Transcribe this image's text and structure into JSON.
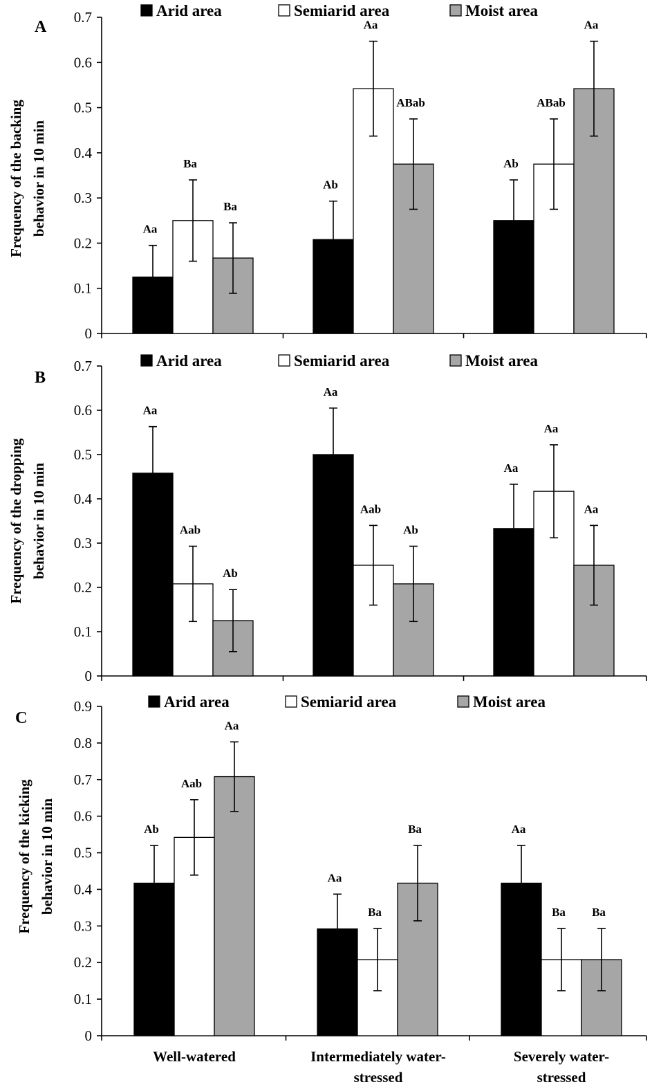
{
  "colors": {
    "arid": "#000000",
    "semiarid": "#ffffff",
    "moist": "#a6a6a6",
    "axis": "#000000"
  },
  "chart_data": [
    {
      "type": "bar",
      "panel": "A",
      "ylabel_line1": "Frequency of the backing",
      "ylabel_line2": "behavior in 10 min",
      "ylim": [
        0,
        0.7
      ],
      "yticks": [
        "0",
        "0.1",
        "0.2",
        "0.3",
        "0.4",
        "0.5",
        "0.6",
        "0.7"
      ],
      "legend_position": "top",
      "categories": [
        "Well-watered",
        "Intermediately water-stressed",
        "Severely water-stressed"
      ],
      "series": [
        {
          "name": "Arid area",
          "values": [
            0.125,
            0.208,
            0.25
          ],
          "errors": [
            0.07,
            0.085,
            0.09
          ],
          "labels": [
            "Aa",
            "Ab",
            "Ab"
          ]
        },
        {
          "name": "Semiarid area",
          "values": [
            0.25,
            0.542,
            0.375
          ],
          "errors": [
            0.09,
            0.105,
            0.1
          ],
          "labels": [
            "Ba",
            "Aa",
            "ABab"
          ]
        },
        {
          "name": "Moist area",
          "values": [
            0.167,
            0.375,
            0.542
          ],
          "errors": [
            0.078,
            0.1,
            0.105
          ],
          "labels": [
            "Ba",
            "ABab",
            "Aa"
          ]
        }
      ]
    },
    {
      "type": "bar",
      "panel": "B",
      "ylabel_line1": "Frequency of the dropping",
      "ylabel_line2": "behavior in 10 min",
      "ylim": [
        0,
        0.7
      ],
      "yticks": [
        "0",
        "0.1",
        "0.2",
        "0.3",
        "0.4",
        "0.5",
        "0.6",
        "0.7"
      ],
      "legend_position": "top",
      "categories": [
        "Well-watered",
        "Intermediately water-stressed",
        "Severely water-stressed"
      ],
      "series": [
        {
          "name": "Arid area",
          "values": [
            0.458,
            0.5,
            0.333
          ],
          "errors": [
            0.105,
            0.105,
            0.1
          ],
          "labels": [
            "Aa",
            "Aa",
            "Aa"
          ]
        },
        {
          "name": "Semiarid area",
          "values": [
            0.208,
            0.25,
            0.417
          ],
          "errors": [
            0.085,
            0.09,
            0.105
          ],
          "labels": [
            "Aab",
            "Aab",
            "Aa"
          ]
        },
        {
          "name": "Moist area",
          "values": [
            0.125,
            0.208,
            0.25
          ],
          "errors": [
            0.07,
            0.085,
            0.09
          ],
          "labels": [
            "Ab",
            "Ab",
            "Aa"
          ]
        }
      ]
    },
    {
      "type": "bar",
      "panel": "C",
      "ylabel_line1": "Frequency of the kicking",
      "ylabel_line2": "behavior in 10 min",
      "ylim": [
        0,
        0.9
      ],
      "yticks": [
        "0",
        "0.1",
        "0.2",
        "0.3",
        "0.4",
        "0.5",
        "0.6",
        "0.7",
        "0.8",
        "0.9"
      ],
      "legend_position": "top",
      "categories": [
        "Well-watered",
        "Intermediately water-stressed",
        "Severely water-stressed"
      ],
      "category_labels_line1": [
        "Well-watered",
        "Intermediately water-",
        "Severely water-"
      ],
      "category_labels_line2": [
        "",
        "stressed",
        "stressed"
      ],
      "series": [
        {
          "name": "Arid area",
          "values": [
            0.417,
            0.292,
            0.417
          ],
          "errors": [
            0.103,
            0.095,
            0.103
          ],
          "labels": [
            "Ab",
            "Aa",
            "Aa"
          ]
        },
        {
          "name": "Semiarid area",
          "values": [
            0.542,
            0.208,
            0.208
          ],
          "errors": [
            0.103,
            0.085,
            0.085
          ],
          "labels": [
            "Aab",
            "Ba",
            "Ba"
          ]
        },
        {
          "name": "Moist area",
          "values": [
            0.708,
            0.417,
            0.208
          ],
          "errors": [
            0.095,
            0.103,
            0.085
          ],
          "labels": [
            "Aa",
            "Ba",
            "Ba"
          ]
        }
      ]
    }
  ]
}
